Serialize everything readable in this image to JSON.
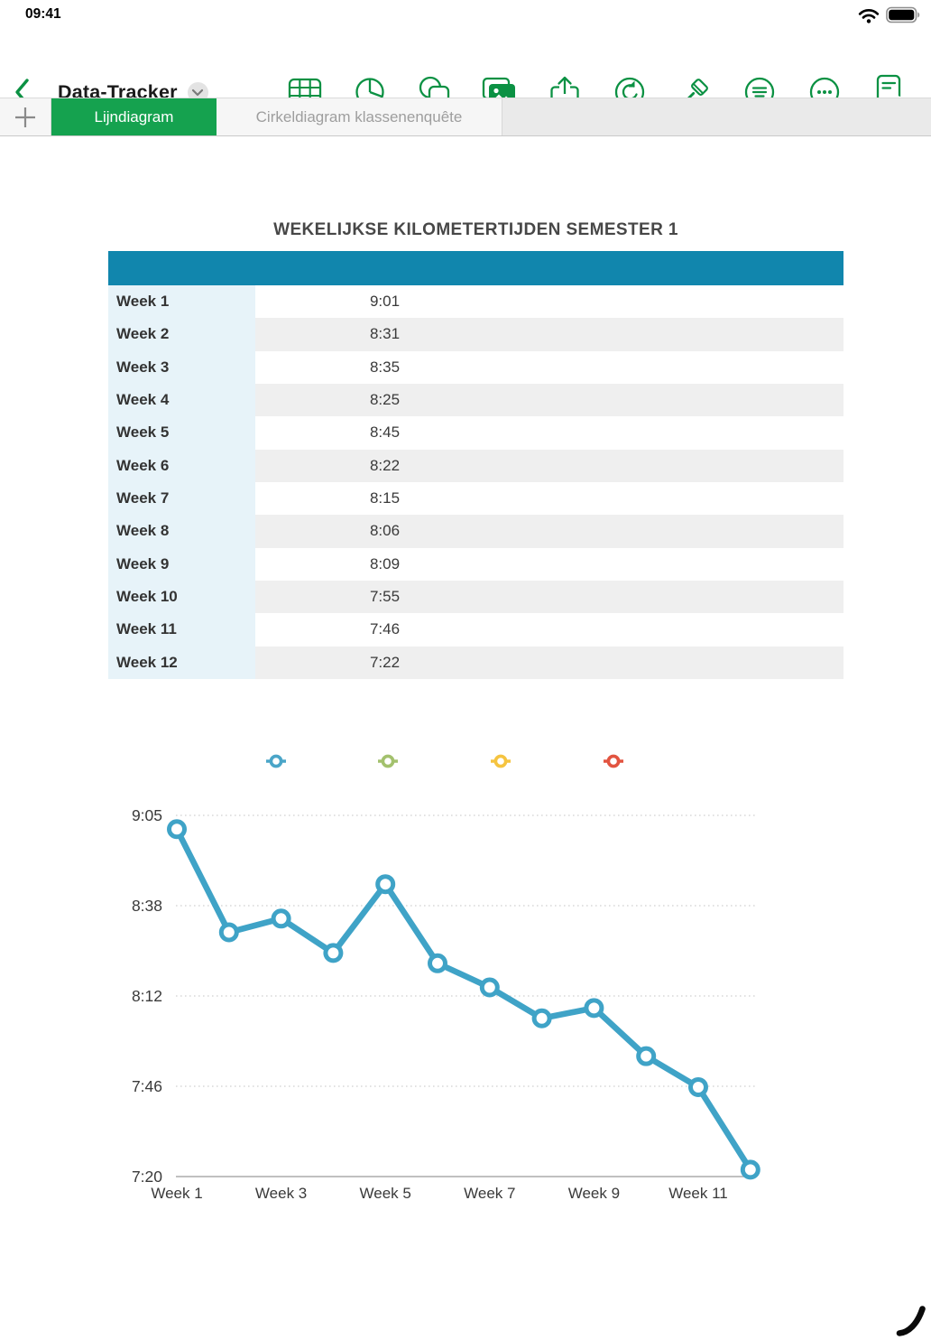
{
  "status_bar": {
    "time": "09:41"
  },
  "toolbar": {
    "title": "Data-Tracker",
    "icons": [
      "table-icon",
      "charts-icon",
      "shapes-icon",
      "media-icon",
      "share-icon",
      "undo-icon",
      "format-brush-icon",
      "collaborate-icon",
      "more-icon",
      "view-options-icon"
    ]
  },
  "tab_bar": {
    "add_tab_label": "+",
    "tabs": [
      {
        "label": "Lijndiagram",
        "active": true
      },
      {
        "label": "Cirkeldiagram klassenenquête",
        "active": false
      }
    ]
  },
  "content": {
    "table_title": "WEKELIJKSE KILOMETERTIJDEN SEMESTER 1",
    "table": {
      "header_color": "#1186AD",
      "label_column_color": "#E7F3F9",
      "alt_row_color": "#EFEFEF",
      "rows": [
        {
          "label": "Week 1",
          "value": "9:01"
        },
        {
          "label": "Week 2",
          "value": "8:31"
        },
        {
          "label": "Week 3",
          "value": "8:35"
        },
        {
          "label": "Week 4",
          "value": "8:25"
        },
        {
          "label": "Week 5",
          "value": "8:45"
        },
        {
          "label": "Week 6",
          "value": "8:22"
        },
        {
          "label": "Week 7",
          "value": "8:15"
        },
        {
          "label": "Week 8",
          "value": "8:06"
        },
        {
          "label": "Week 9",
          "value": "8:09"
        },
        {
          "label": "Week 10",
          "value": "7:55"
        },
        {
          "label": "Week 11",
          "value": "7:46"
        },
        {
          "label": "Week 12",
          "value": "7:22"
        }
      ]
    }
  },
  "chart_data": {
    "type": "line",
    "title": "",
    "categories": [
      "Week 1",
      "Week 2",
      "Week 3",
      "Week 4",
      "Week 5",
      "Week 6",
      "Week 7",
      "Week 8",
      "Week 9",
      "Week 10",
      "Week 11",
      "Week 12"
    ],
    "series": [
      {
        "name": "",
        "values_time": [
          "9:01",
          "8:31",
          "8:35",
          "8:25",
          "8:45",
          "8:22",
          "8:15",
          "8:06",
          "8:09",
          "7:55",
          "7:46",
          "7:22"
        ],
        "values_minutes": [
          541,
          511,
          515,
          505,
          525,
          502,
          495,
          486,
          489,
          475,
          466,
          442
        ],
        "color": "#3FA3C7"
      }
    ],
    "ylim_minutes": [
      440,
      545
    ],
    "y_tick_labels": [
      "9:05",
      "8:38",
      "8:12",
      "7:46",
      "7:20"
    ],
    "x_tick_labels": [
      "Week 1",
      "Week 3",
      "Week 5",
      "Week 7",
      "Week 9",
      "Week 11"
    ],
    "grid": "horizontal-dotted",
    "legend_position": "top",
    "legend_marker_colors": [
      "#4AA5C8",
      "#A3C16D",
      "#F5C440",
      "#E25440"
    ]
  },
  "colors": {
    "accent_green": "#15A24F",
    "toolbar_icon_green": "#0B9143",
    "table_header_teal": "#1186AD",
    "chart_line_blue": "#3FA3C7"
  }
}
